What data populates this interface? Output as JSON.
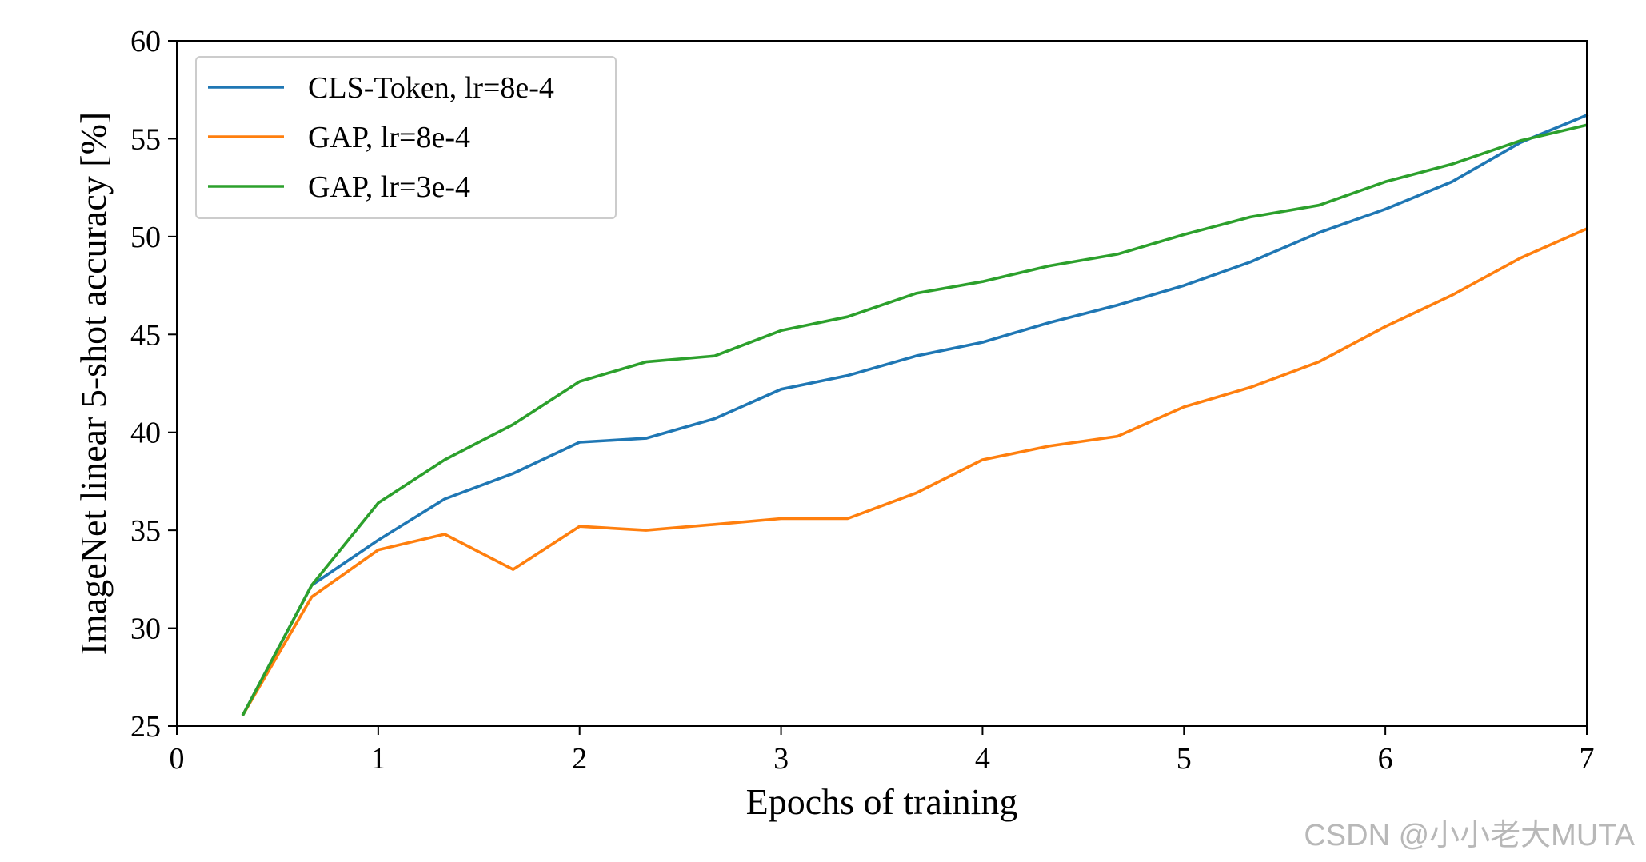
{
  "chart_data": {
    "type": "line",
    "xlabel": "Epochs of training",
    "ylabel": "ImageNet linear 5-shot accuracy [%]",
    "xlim": [
      0,
      7
    ],
    "ylim": [
      25,
      60
    ],
    "xticks": [
      0,
      1,
      2,
      3,
      4,
      5,
      6,
      7
    ],
    "yticks": [
      25,
      30,
      35,
      40,
      45,
      50,
      55,
      60
    ],
    "grid": false,
    "legend": "top-left",
    "series": [
      {
        "name": "CLS-Token, lr=8e-4",
        "color": "#1f77b4",
        "x": [
          0.33,
          0.67,
          1.0,
          1.33,
          1.67,
          2.0,
          2.33,
          2.67,
          3.0,
          3.33,
          3.67,
          4.0,
          4.33,
          4.67,
          5.0,
          5.33,
          5.67,
          6.0,
          6.33,
          6.67,
          7.0
        ],
        "y": [
          25.6,
          32.2,
          34.5,
          36.6,
          37.9,
          39.5,
          39.7,
          40.7,
          42.2,
          42.9,
          43.9,
          44.6,
          45.6,
          46.5,
          47.5,
          48.7,
          50.2,
          51.4,
          52.8,
          54.8,
          56.2
        ]
      },
      {
        "name": "GAP, lr=8e-4",
        "color": "#ff7f0e",
        "x": [
          0.33,
          0.67,
          1.0,
          1.33,
          1.67,
          2.0,
          2.33,
          2.67,
          3.0,
          3.33,
          3.67,
          4.0,
          4.33,
          4.67,
          5.0,
          5.33,
          5.67,
          6.0,
          6.33,
          6.67,
          7.0
        ],
        "y": [
          25.6,
          31.6,
          34.0,
          34.8,
          33.0,
          35.2,
          35.0,
          35.3,
          35.6,
          35.6,
          36.9,
          38.6,
          39.3,
          39.8,
          41.3,
          42.3,
          43.6,
          45.4,
          47.0,
          48.9,
          50.4
        ]
      },
      {
        "name": "GAP, lr=3e-4",
        "color": "#2ca02c",
        "x": [
          0.33,
          0.67,
          1.0,
          1.33,
          1.67,
          2.0,
          2.33,
          2.67,
          3.0,
          3.33,
          3.67,
          4.0,
          4.33,
          4.67,
          5.0,
          5.33,
          5.67,
          6.0,
          6.33,
          6.67,
          7.0
        ],
        "y": [
          25.6,
          32.2,
          36.4,
          38.6,
          40.4,
          42.6,
          43.6,
          43.9,
          45.2,
          45.9,
          47.1,
          47.7,
          48.5,
          49.1,
          50.1,
          51.0,
          51.6,
          52.8,
          53.7,
          54.9,
          55.7
        ]
      }
    ]
  },
  "watermark": "CSDN @小小老大MUTA"
}
